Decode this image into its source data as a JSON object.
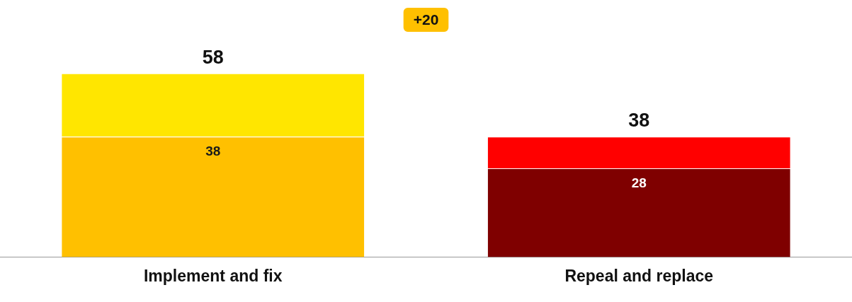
{
  "chart_data": {
    "type": "bar",
    "stacked": true,
    "categories": [
      "Implement and fix",
      "Repeal and replace"
    ],
    "series": [
      {
        "values": [
          38,
          28
        ],
        "colors": [
          "#ffc000",
          "#7f0000"
        ],
        "value_labels": [
          "38",
          "28"
        ]
      },
      {
        "values": [
          20,
          10
        ],
        "colors": [
          "#ffe600",
          "#ff0000"
        ]
      }
    ],
    "totals": [
      "58",
      "38"
    ],
    "annotations": [
      "+20"
    ],
    "grid": false,
    "legend": false
  }
}
